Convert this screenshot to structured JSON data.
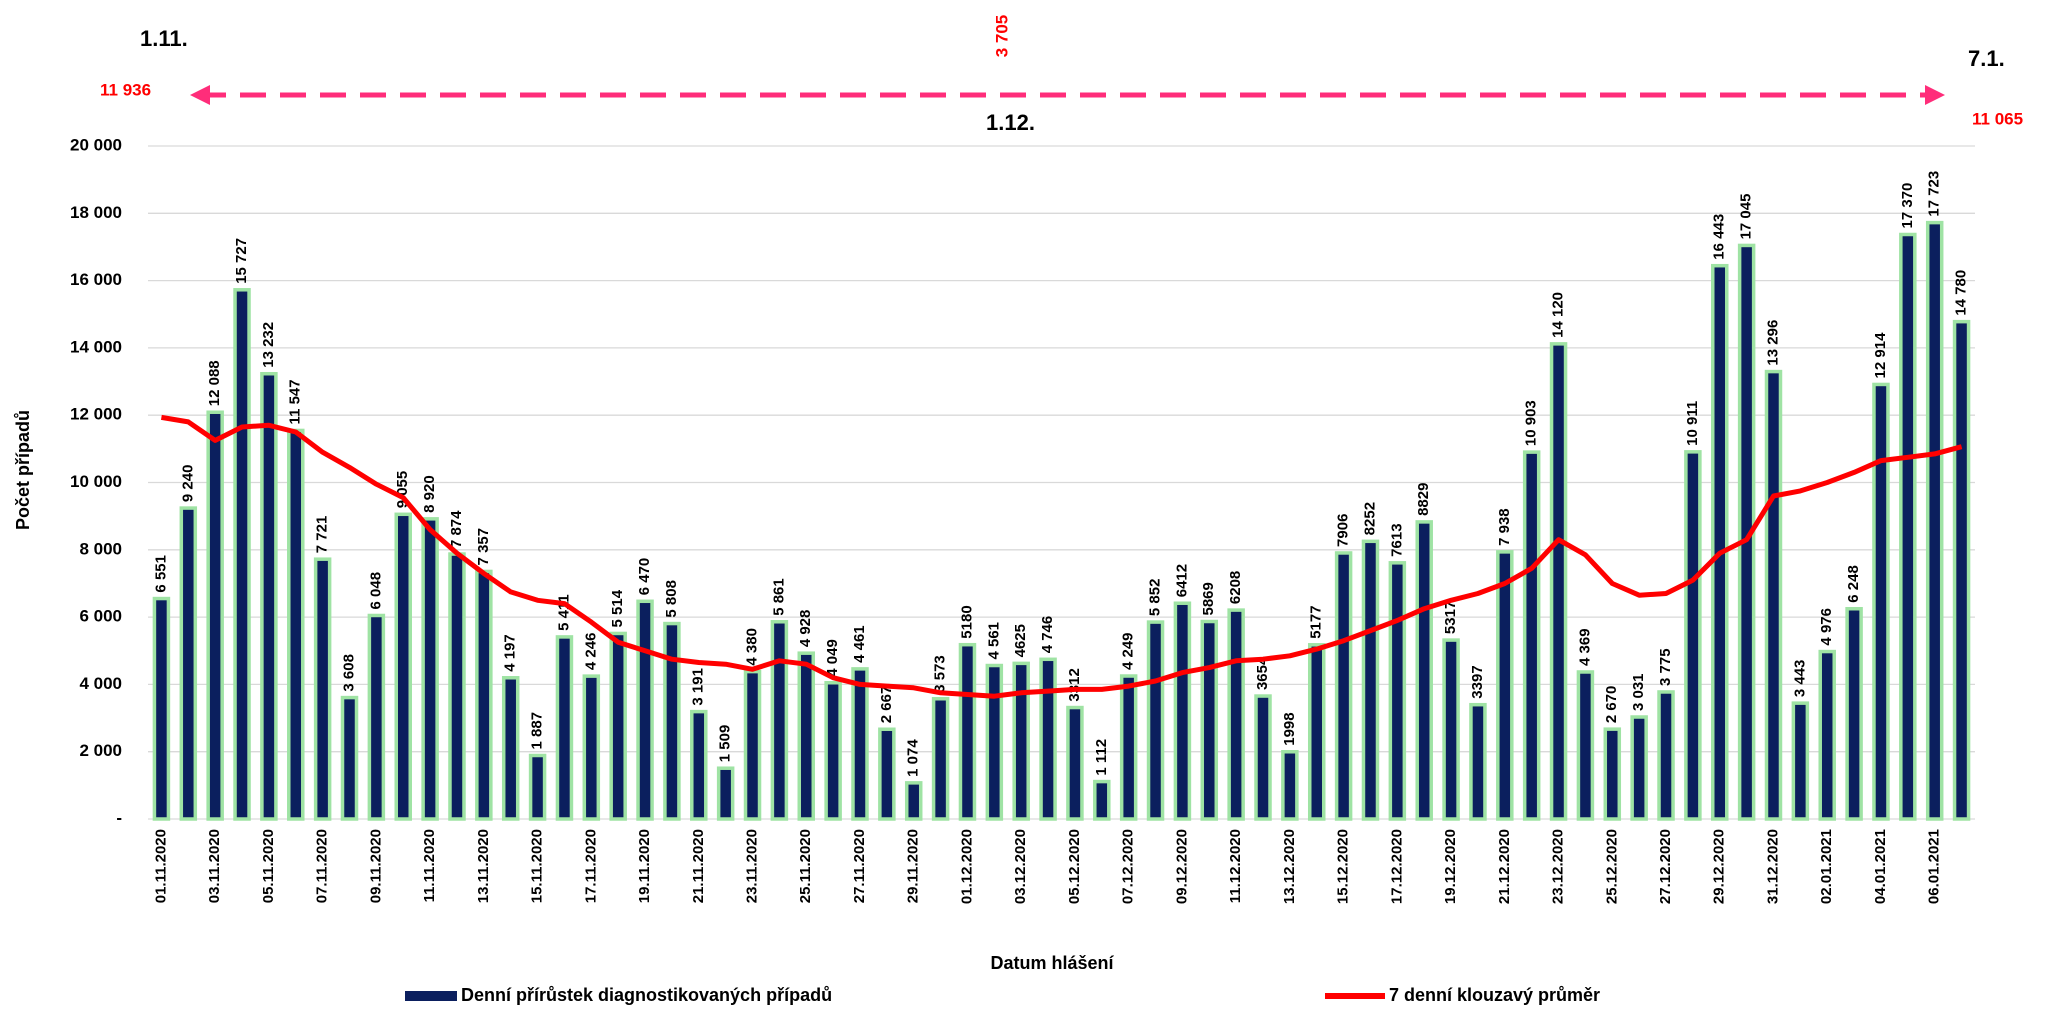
{
  "chart_data": {
    "type": "bar",
    "x_label": "Datum hlášení",
    "y_label": "Počet případů",
    "annotations": [
      "1.11.",
      "1.12.",
      "7.1.",
      "11 936",
      "11 065",
      "3 705"
    ],
    "categories": [
      "01.11.2020",
      null,
      "03.11.2020",
      null,
      "05.11.2020",
      null,
      "07.11.2020",
      null,
      "09.11.2020",
      null,
      "11.11.2020",
      null,
      "13.11.2020",
      null,
      "15.11.2020",
      null,
      "17.11.2020",
      null,
      "19.11.2020",
      null,
      "21.11.2020",
      null,
      "23.11.2020",
      null,
      "25.11.2020",
      null,
      "27.11.2020",
      null,
      "29.11.2020",
      null,
      "01.12.2020",
      null,
      "03.12.2020",
      null,
      "05.12.2020",
      null,
      "07.12.2020",
      null,
      "09.12.2020",
      null,
      "11.12.2020",
      null,
      "13.12.2020",
      null,
      "15.12.2020",
      null,
      "17.12.2020",
      null,
      "19.12.2020",
      null,
      "21.12.2020",
      null,
      "23.12.2020",
      null,
      "25.12.2020",
      null,
      "27.12.2020",
      null,
      "29.12.2020",
      null,
      "31.12.2020",
      null,
      "02.01.2021",
      null,
      "04.01.2021",
      null,
      "06.01.2021",
      null
    ],
    "series": [
      {
        "name": "Denní přírůstek diagnostikovaných případů",
        "type": "bar",
        "color": "#0b1f5e",
        "values": [
          6551,
          9240,
          12088,
          15727,
          13232,
          11547,
          7721,
          3608,
          6048,
          9055,
          8920,
          7874,
          7357,
          4197,
          1887,
          5411,
          4246,
          5514,
          6470,
          5808,
          3191,
          1509,
          4380,
          5861,
          4928,
          4049,
          4461,
          2667,
          1074,
          3573,
          5180,
          4561,
          4625,
          4746,
          3312,
          1112,
          4249,
          5852,
          6412,
          5869,
          6208,
          3654,
          1998,
          5177,
          7906,
          8252,
          7613,
          8829,
          5317,
          3397,
          7938,
          10903,
          14120,
          4369,
          2670,
          3031,
          3775,
          10911,
          16443,
          17045,
          13296,
          3443,
          4976,
          6248,
          12914,
          17370,
          17723,
          14780
        ],
        "value_labels": [
          "6 551",
          "9 240",
          "12 088",
          "15 727",
          "13 232",
          "11 547",
          "7 721",
          "3 608",
          "6 048",
          "9 055",
          "8 920",
          "7 874",
          "7 357",
          "4 197",
          "1 887",
          "5 411",
          "4 246",
          "5 514",
          "6 470",
          "5 808",
          "3 191",
          "1 509",
          "4 380",
          "5 861",
          "4 928",
          "4 049",
          "4 461",
          "2 667",
          "1 074",
          "3 573",
          "5180",
          "4 561",
          "4625",
          "4 746",
          "3312",
          "1 112",
          "4 249",
          "5 852",
          "6412",
          "5869",
          "6208",
          "3654",
          "1998",
          "5177",
          "7906",
          "8252",
          "7613",
          "8829",
          "5317",
          "3397",
          "7 938",
          "10 903",
          "14 120",
          "4 369",
          "2 670",
          "3 031",
          "3 775",
          "10 911",
          "16 443",
          "17 045",
          "13 296",
          "3 443",
          "4 976",
          "6 248",
          "12 914",
          "17 370",
          "17 723",
          "14 780"
        ]
      },
      {
        "name": "7 denní klouzavý průměr",
        "type": "line",
        "color": "#ff0000",
        "values": [
          11936,
          11800,
          11250,
          11650,
          11700,
          11500,
          10900,
          10450,
          9950,
          9550,
          8600,
          7900,
          7300,
          6750,
          6500,
          6400,
          5850,
          5250,
          5000,
          4750,
          4650,
          4600,
          4450,
          4700,
          4600,
          4200,
          4000,
          3950,
          3900,
          3750,
          3700,
          3650,
          3750,
          3800,
          3850,
          3850,
          3950,
          4100,
          4350,
          4500,
          4700,
          4750,
          4850,
          5050,
          5300,
          5600,
          5900,
          6250,
          6500,
          6700,
          7000,
          7450,
          8300,
          7850,
          7000,
          6650,
          6700,
          7100,
          7900,
          8300,
          9600,
          9750,
          10000,
          10300,
          10650,
          10750,
          10850,
          11065
        ]
      }
    ],
    "ylim": [
      0,
      20000
    ],
    "yticks": [
      {
        "value": 0,
        "label": "-"
      },
      {
        "value": 2000,
        "label": "2 000"
      },
      {
        "value": 4000,
        "label": "4 000"
      },
      {
        "value": 6000,
        "label": "6 000"
      },
      {
        "value": 8000,
        "label": "8 000"
      },
      {
        "value": 10000,
        "label": "10 000"
      },
      {
        "value": 12000,
        "label": "12 000"
      },
      {
        "value": 14000,
        "label": "14 000"
      },
      {
        "value": 16000,
        "label": "16 000"
      },
      {
        "value": 18000,
        "label": "18 000"
      },
      {
        "value": 20000,
        "label": "20 000"
      }
    ],
    "grid": true
  }
}
